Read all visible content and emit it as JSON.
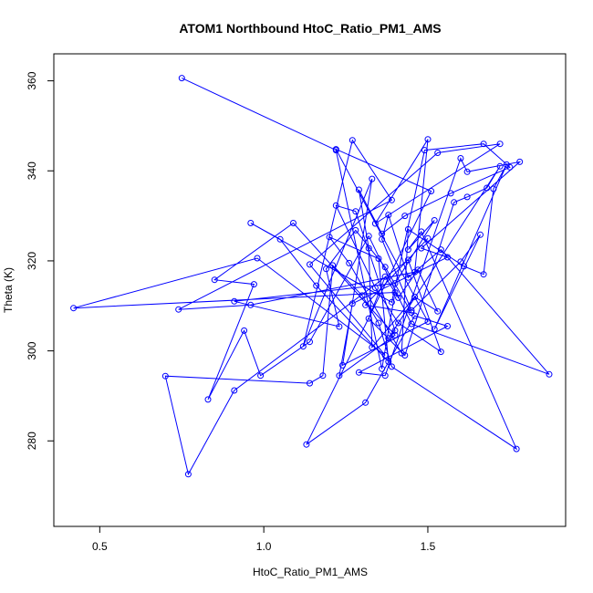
{
  "chart_data": {
    "type": "line",
    "title": "ATOM1 Northbound HtoC_Ratio_PM1_AMS",
    "xlabel": "HtoC_Ratio_PM1_AMS",
    "ylabel": "Theta (K)",
    "xlim": [
      0.36,
      1.92
    ],
    "ylim": [
      261,
      366
    ],
    "xticks": [
      0.5,
      1.0,
      1.5
    ],
    "xtick_labels": [
      "0.5",
      "1.0",
      "1.5"
    ],
    "yticks": [
      280,
      300,
      320,
      340,
      360
    ],
    "ytick_labels": [
      "280",
      "300",
      "320",
      "340",
      "360"
    ],
    "marker": "open-circle",
    "color": "#0000ff",
    "grid": false,
    "points": [
      [
        0.75,
        360.6
      ],
      [
        1.22,
        344.6
      ],
      [
        1.36,
        296.0
      ],
      [
        1.4,
        313.0
      ],
      [
        0.42,
        309.5
      ],
      [
        0.98,
        320.6
      ],
      [
        1.37,
        299.0
      ],
      [
        1.14,
        319.2
      ],
      [
        1.53,
        344.0
      ],
      [
        1.72,
        346.0
      ],
      [
        1.34,
        328.3
      ],
      [
        1.5,
        347.0
      ],
      [
        1.46,
        317.5
      ],
      [
        0.96,
        310.2
      ],
      [
        0.74,
        309.2
      ],
      [
        1.39,
        333.5
      ],
      [
        1.27,
        346.8
      ],
      [
        1.12,
        301.0
      ],
      [
        1.33,
        338.2
      ],
      [
        1.24,
        296.8
      ],
      [
        1.5,
        306.5
      ],
      [
        1.22,
        344.8
      ],
      [
        1.51,
        335.5
      ],
      [
        1.13,
        279.2
      ],
      [
        1.31,
        288.5
      ],
      [
        1.46,
        307.8
      ],
      [
        1.56,
        305.5
      ],
      [
        1.29,
        295.2
      ],
      [
        1.37,
        294.5
      ],
      [
        1.6,
        342.8
      ],
      [
        1.62,
        339.8
      ],
      [
        1.78,
        342.0
      ],
      [
        1.48,
        322.8
      ],
      [
        1.56,
        320.8
      ],
      [
        1.27,
        310.5
      ],
      [
        1.23,
        294.5
      ],
      [
        1.4,
        303.5
      ],
      [
        1.09,
        328.4
      ],
      [
        0.85,
        315.8
      ],
      [
        0.97,
        314.8
      ],
      [
        0.83,
        289.2
      ],
      [
        0.94,
        304.5
      ],
      [
        0.99,
        294.5
      ],
      [
        1.14,
        302.0
      ],
      [
        1.32,
        325.5
      ],
      [
        1.45,
        306.0
      ],
      [
        1.87,
        294.8
      ],
      [
        1.54,
        322.5
      ],
      [
        1.44,
        316.3
      ],
      [
        1.38,
        330.2
      ],
      [
        1.36,
        324.8
      ],
      [
        1.45,
        309.0
      ],
      [
        1.6,
        319.8
      ],
      [
        1.66,
        325.8
      ],
      [
        1.52,
        304.8
      ],
      [
        1.74,
        341.4
      ],
      [
        1.7,
        336.0
      ],
      [
        1.67,
        317.0
      ],
      [
        1.61,
        318.8
      ],
      [
        1.44,
        327.0
      ],
      [
        1.42,
        299.5
      ],
      [
        1.26,
        319.5
      ],
      [
        1.2,
        325.3
      ],
      [
        1.35,
        320.5
      ],
      [
        1.38,
        297.6
      ],
      [
        1.16,
        314.5
      ],
      [
        1.05,
        324.8
      ],
      [
        0.96,
        328.4
      ],
      [
        1.39,
        310.8
      ],
      [
        1.49,
        344.6
      ],
      [
        1.67,
        346.0
      ],
      [
        1.75,
        340.8
      ],
      [
        1.57,
        335.0
      ],
      [
        1.43,
        330.0
      ],
      [
        1.36,
        326.0
      ],
      [
        1.29,
        335.8
      ],
      [
        1.32,
        322.8
      ],
      [
        1.33,
        300.8
      ],
      [
        1.46,
        312.0
      ],
      [
        1.53,
        308.8
      ],
      [
        1.47,
        318.0
      ],
      [
        1.41,
        311.8
      ],
      [
        1.37,
        316.5
      ],
      [
        1.32,
        307.2
      ],
      [
        1.43,
        299.0
      ],
      [
        1.58,
        333.0
      ],
      [
        1.62,
        334.2
      ],
      [
        1.68,
        336.2
      ],
      [
        1.72,
        341.0
      ],
      [
        1.38,
        302.8
      ],
      [
        1.4,
        304.5
      ],
      [
        1.28,
        331.0
      ],
      [
        1.22,
        332.3
      ],
      [
        1.34,
        314.0
      ],
      [
        1.41,
        306.2
      ],
      [
        1.54,
        299.8
      ],
      [
        1.44,
        320.2
      ],
      [
        0.91,
        291.2
      ],
      [
        0.77,
        272.6
      ],
      [
        0.7,
        294.4
      ],
      [
        1.14,
        292.8
      ],
      [
        1.18,
        294.5
      ],
      [
        1.21,
        319.0
      ],
      [
        1.3,
        312.3
      ],
      [
        1.35,
        306.2
      ],
      [
        1.39,
        296.5
      ],
      [
        1.77,
        278.2
      ],
      [
        1.48,
        326.5
      ],
      [
        1.44,
        322.5
      ],
      [
        1.52,
        329.0
      ],
      [
        1.4,
        315.0
      ],
      [
        0.91,
        311.0
      ],
      [
        1.23,
        305.4
      ],
      [
        1.19,
        318.2
      ],
      [
        1.28,
        326.8
      ],
      [
        1.37,
        318.6
      ],
      [
        1.45,
        308.5
      ],
      [
        1.31,
        310.2
      ],
      [
        1.5,
        325.0
      ]
    ]
  }
}
